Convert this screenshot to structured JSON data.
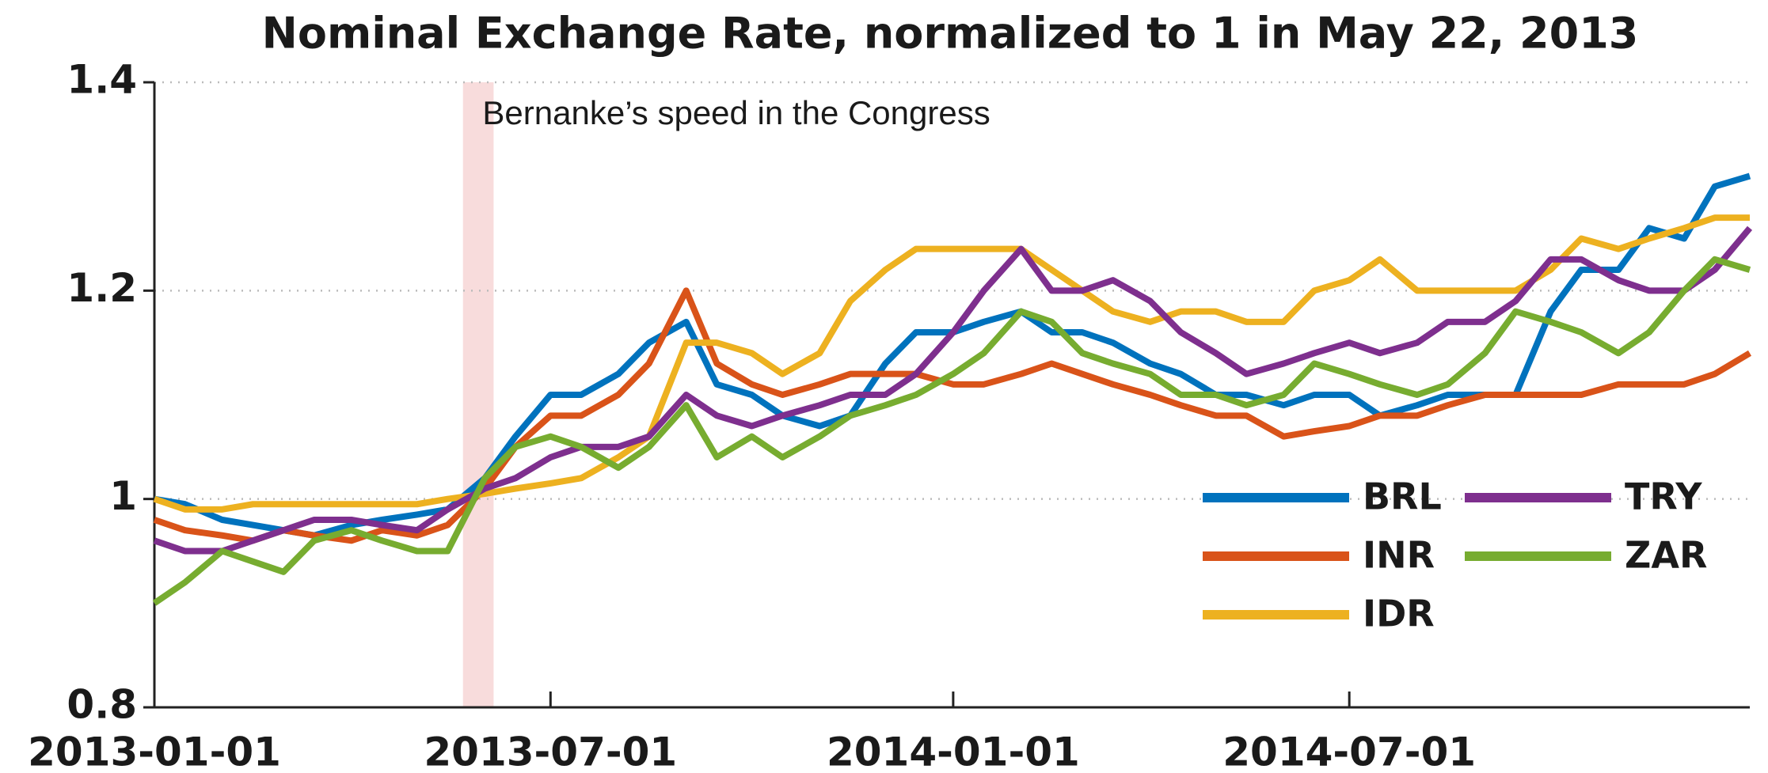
{
  "chart_data": {
    "type": "line",
    "title": "Nominal Exchange Rate, normalized to 1 in May 22, 2013",
    "x": [
      "2013-01-01",
      "2013-01-15",
      "2013-02-01",
      "2013-02-15",
      "2013-03-01",
      "2013-03-15",
      "2013-04-01",
      "2013-04-15",
      "2013-05-01",
      "2013-05-15",
      "2013-06-01",
      "2013-06-15",
      "2013-07-01",
      "2013-07-15",
      "2013-08-01",
      "2013-08-15",
      "2013-09-01",
      "2013-09-15",
      "2013-10-01",
      "2013-10-15",
      "2013-11-01",
      "2013-11-15",
      "2013-12-01",
      "2013-12-15",
      "2014-01-01",
      "2014-01-15",
      "2014-02-01",
      "2014-02-15",
      "2014-03-01",
      "2014-03-15",
      "2014-04-01",
      "2014-04-15",
      "2014-05-01",
      "2014-05-15",
      "2014-06-01",
      "2014-06-15",
      "2014-07-01",
      "2014-07-15",
      "2014-08-01",
      "2014-08-15",
      "2014-09-01",
      "2014-09-15",
      "2014-10-01",
      "2014-10-15",
      "2014-11-01",
      "2014-11-15",
      "2014-12-01",
      "2014-12-15",
      "2014-12-31"
    ],
    "series": [
      {
        "name": "BRL",
        "color": "#0072bd",
        "values": [
          1.0,
          0.995,
          0.98,
          0.975,
          0.97,
          0.965,
          0.975,
          0.98,
          0.985,
          0.99,
          1.02,
          1.06,
          1.1,
          1.1,
          1.12,
          1.15,
          1.17,
          1.11,
          1.1,
          1.08,
          1.07,
          1.08,
          1.13,
          1.16,
          1.16,
          1.17,
          1.18,
          1.16,
          1.16,
          1.15,
          1.13,
          1.12,
          1.1,
          1.1,
          1.09,
          1.1,
          1.1,
          1.08,
          1.09,
          1.1,
          1.1,
          1.1,
          1.18,
          1.22,
          1.22,
          1.26,
          1.25,
          1.3,
          1.31
        ]
      },
      {
        "name": "INR",
        "color": "#d95319",
        "values": [
          0.98,
          0.97,
          0.965,
          0.96,
          0.97,
          0.965,
          0.96,
          0.97,
          0.965,
          0.975,
          1.01,
          1.05,
          1.08,
          1.08,
          1.1,
          1.13,
          1.2,
          1.13,
          1.11,
          1.1,
          1.11,
          1.12,
          1.12,
          1.12,
          1.11,
          1.11,
          1.12,
          1.13,
          1.12,
          1.11,
          1.1,
          1.09,
          1.08,
          1.08,
          1.06,
          1.065,
          1.07,
          1.08,
          1.08,
          1.09,
          1.1,
          1.1,
          1.1,
          1.1,
          1.11,
          1.11,
          1.11,
          1.12,
          1.14
        ]
      },
      {
        "name": "IDR",
        "color": "#edb120",
        "values": [
          1.0,
          0.99,
          0.99,
          0.995,
          0.995,
          0.995,
          0.995,
          0.995,
          0.995,
          1.0,
          1.005,
          1.01,
          1.015,
          1.02,
          1.04,
          1.06,
          1.15,
          1.15,
          1.14,
          1.12,
          1.14,
          1.19,
          1.22,
          1.24,
          1.24,
          1.24,
          1.24,
          1.22,
          1.2,
          1.18,
          1.17,
          1.18,
          1.18,
          1.17,
          1.17,
          1.2,
          1.21,
          1.23,
          1.2,
          1.2,
          1.2,
          1.2,
          1.22,
          1.25,
          1.24,
          1.25,
          1.26,
          1.27,
          1.27
        ]
      },
      {
        "name": "TRY",
        "color": "#7e2f8e",
        "values": [
          0.96,
          0.95,
          0.95,
          0.96,
          0.97,
          0.98,
          0.98,
          0.975,
          0.97,
          0.99,
          1.01,
          1.02,
          1.04,
          1.05,
          1.05,
          1.06,
          1.1,
          1.08,
          1.07,
          1.08,
          1.09,
          1.1,
          1.1,
          1.12,
          1.16,
          1.2,
          1.24,
          1.2,
          1.2,
          1.21,
          1.19,
          1.16,
          1.14,
          1.12,
          1.13,
          1.14,
          1.15,
          1.14,
          1.15,
          1.17,
          1.17,
          1.19,
          1.23,
          1.23,
          1.21,
          1.2,
          1.2,
          1.22,
          1.26
        ]
      },
      {
        "name": "ZAR",
        "color": "#77ac30",
        "values": [
          0.9,
          0.92,
          0.95,
          0.94,
          0.93,
          0.96,
          0.97,
          0.96,
          0.95,
          0.95,
          1.02,
          1.05,
          1.06,
          1.05,
          1.03,
          1.05,
          1.09,
          1.04,
          1.06,
          1.04,
          1.06,
          1.08,
          1.09,
          1.1,
          1.12,
          1.14,
          1.18,
          1.17,
          1.14,
          1.13,
          1.12,
          1.1,
          1.1,
          1.09,
          1.1,
          1.13,
          1.12,
          1.11,
          1.1,
          1.11,
          1.14,
          1.18,
          1.17,
          1.16,
          1.14,
          1.16,
          1.2,
          1.23,
          1.22
        ]
      }
    ],
    "xlim": [
      "2013-01-01",
      "2014-12-31"
    ],
    "xticks": [
      "2013-01-01",
      "2013-07-01",
      "2014-01-01",
      "2014-07-01"
    ],
    "ylim": [
      0.8,
      1.4
    ],
    "yticks": [
      0.8,
      1,
      1.2,
      1.4
    ],
    "grid": true,
    "annotation": {
      "text": "Bernanke’s speed in the Congress",
      "x": [
        "2013-05-22",
        "2013-06-05"
      ],
      "color": "#f8dcdc"
    }
  }
}
